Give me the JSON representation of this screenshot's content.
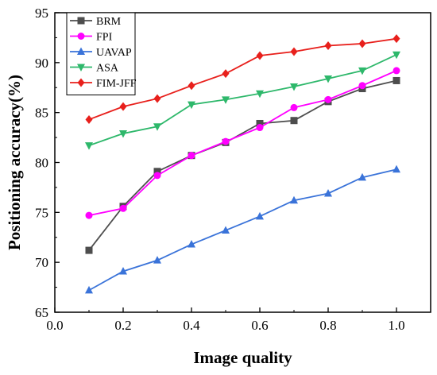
{
  "chart_data": {
    "type": "line",
    "xlabel": "Image quality",
    "ylabel": "Positioning accuracy(%)",
    "xlim": [
      0.0,
      1.1
    ],
    "ylim": [
      65,
      95
    ],
    "xticks": [
      0.0,
      0.2,
      0.4,
      0.6,
      0.8,
      1.0
    ],
    "xtick_labels": [
      "0.0",
      "0.2",
      "0.4",
      "0.6",
      "0.8",
      "1.0"
    ],
    "yticks": [
      65,
      70,
      75,
      80,
      85,
      90,
      95
    ],
    "ytick_labels": [
      "65",
      "70",
      "75",
      "80",
      "85",
      "90",
      "95"
    ],
    "grid": false,
    "legend_position": "top-left",
    "x": [
      0.1,
      0.2,
      0.3,
      0.4,
      0.5,
      0.6,
      0.7,
      0.8,
      0.9,
      1.0
    ],
    "series": [
      {
        "name": "BRM",
        "color": "#4d4d4d",
        "marker": "square",
        "values": [
          71.2,
          75.6,
          79.1,
          80.7,
          82.0,
          83.9,
          84.2,
          86.1,
          87.4,
          88.2
        ]
      },
      {
        "name": "FPI",
        "color": "#ff00ff",
        "marker": "circle",
        "values": [
          74.7,
          75.4,
          78.7,
          80.7,
          82.1,
          83.5,
          85.5,
          86.3,
          87.7,
          89.2
        ]
      },
      {
        "name": "UAVAP",
        "color": "#3a73d9",
        "marker": "triangle-up",
        "values": [
          67.2,
          69.1,
          70.2,
          71.8,
          73.2,
          74.6,
          76.2,
          76.9,
          78.5,
          79.3
        ]
      },
      {
        "name": "ASA",
        "color": "#2eb86b",
        "marker": "triangle-down",
        "values": [
          81.7,
          82.9,
          83.6,
          85.8,
          86.3,
          86.9,
          87.6,
          88.4,
          89.2,
          90.8
        ]
      },
      {
        "name": "FIM-JFF",
        "color": "#e8201c",
        "marker": "diamond",
        "values": [
          84.3,
          85.6,
          86.4,
          87.7,
          88.9,
          90.7,
          91.1,
          91.7,
          91.9,
          92.4
        ]
      }
    ]
  }
}
